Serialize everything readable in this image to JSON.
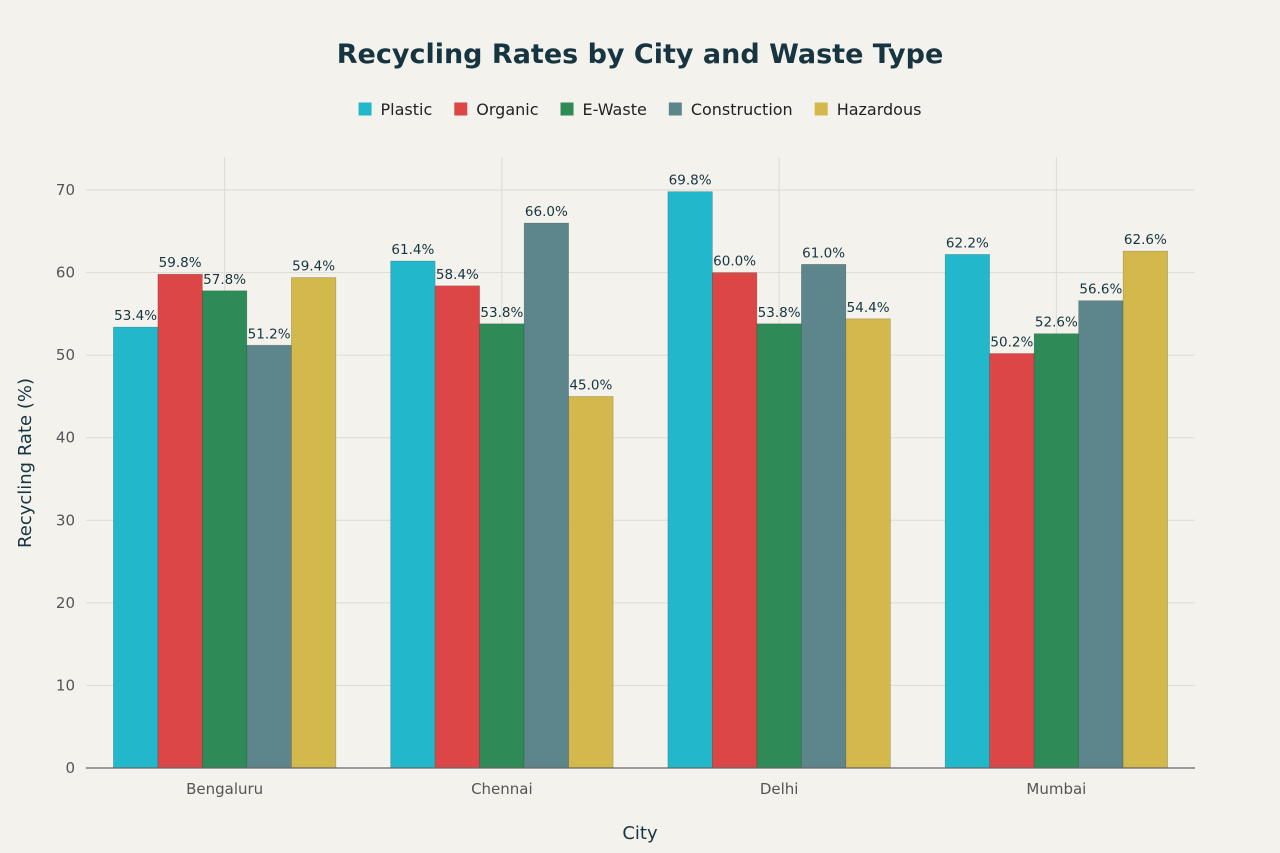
{
  "chart_data": {
    "type": "bar",
    "title": "Recycling Rates by City and Waste Type",
    "xlabel": "City",
    "ylabel": "Recycling Rate (%)",
    "categories": [
      "Bengaluru",
      "Chennai",
      "Delhi",
      "Mumbai"
    ],
    "ylim": [
      0,
      74
    ],
    "yticks": [
      0,
      10,
      20,
      30,
      40,
      50,
      60,
      70
    ],
    "grid": true,
    "legend_position": "top-center",
    "value_label_suffix": "%",
    "series": [
      {
        "name": "Plastic",
        "color": "#21b8cc",
        "values": [
          53.4,
          61.4,
          69.8,
          62.2
        ]
      },
      {
        "name": "Organic",
        "color": "#dc4646",
        "values": [
          59.8,
          58.4,
          60.0,
          50.2
        ]
      },
      {
        "name": "E-Waste",
        "color": "#2e8a57",
        "values": [
          57.8,
          53.8,
          53.8,
          52.6
        ]
      },
      {
        "name": "Construction",
        "color": "#5d868c",
        "values": [
          51.2,
          66.0,
          61.0,
          56.6
        ]
      },
      {
        "name": "Hazardous",
        "color": "#d3b84c",
        "values": [
          59.4,
          45.0,
          54.4,
          62.6
        ]
      }
    ]
  }
}
